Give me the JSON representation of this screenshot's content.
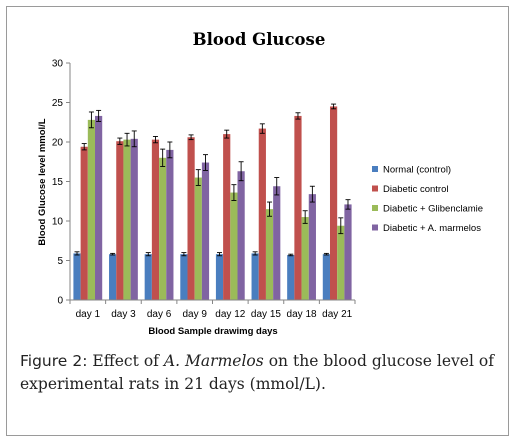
{
  "chart_data": {
    "type": "bar",
    "title": "Blood Glucose",
    "xlabel": "Blood Sample drawimg days",
    "ylabel": "Blood Glucose level  mmol/L",
    "ylim": [
      0,
      30
    ],
    "yticks": [
      "0",
      "5",
      "10",
      "15",
      "20",
      "25",
      "30"
    ],
    "grid": false,
    "legend_position": "right",
    "categories": [
      "day 1",
      "day 3",
      "day 6",
      "day 9",
      "day 12",
      "day 15",
      "day 18",
      "day 21"
    ],
    "series": [
      {
        "name": "Normal (control)",
        "color": "#4a7ebf",
        "values": [
          5.9,
          5.8,
          5.8,
          5.8,
          5.8,
          5.9,
          5.7,
          5.8
        ],
        "errors": [
          0.2,
          0.1,
          0.2,
          0.2,
          0.2,
          0.2,
          0.1,
          0.1
        ]
      },
      {
        "name": "Diabetic control",
        "color": "#c0504d",
        "values": [
          19.4,
          20.1,
          20.3,
          20.6,
          21.0,
          21.7,
          23.3,
          24.5
        ],
        "errors": [
          0.4,
          0.4,
          0.4,
          0.3,
          0.5,
          0.6,
          0.4,
          0.3
        ]
      },
      {
        "name": "Diabetic + Glibenclamie",
        "color": "#9bbb59",
        "values": [
          22.8,
          20.3,
          18.0,
          15.5,
          13.6,
          11.5,
          10.5,
          9.4
        ],
        "errors": [
          1.0,
          0.8,
          1.1,
          1.0,
          1.0,
          0.9,
          0.8,
          1.0
        ]
      },
      {
        "name": "Diabetic + A. marmelos",
        "color": "#8064a2",
        "values": [
          23.3,
          20.4,
          19.0,
          17.4,
          16.3,
          14.4,
          13.4,
          12.1
        ],
        "errors": [
          0.7,
          1.0,
          1.0,
          1.0,
          1.2,
          1.1,
          1.0,
          0.6
        ]
      }
    ]
  },
  "caption": {
    "label": "Figure 2:",
    "text_before": " Effect of ",
    "species": "A. Marmelos",
    "text_after": " on the blood glucose level of experimental rats in 21 days (mmol/L)."
  }
}
